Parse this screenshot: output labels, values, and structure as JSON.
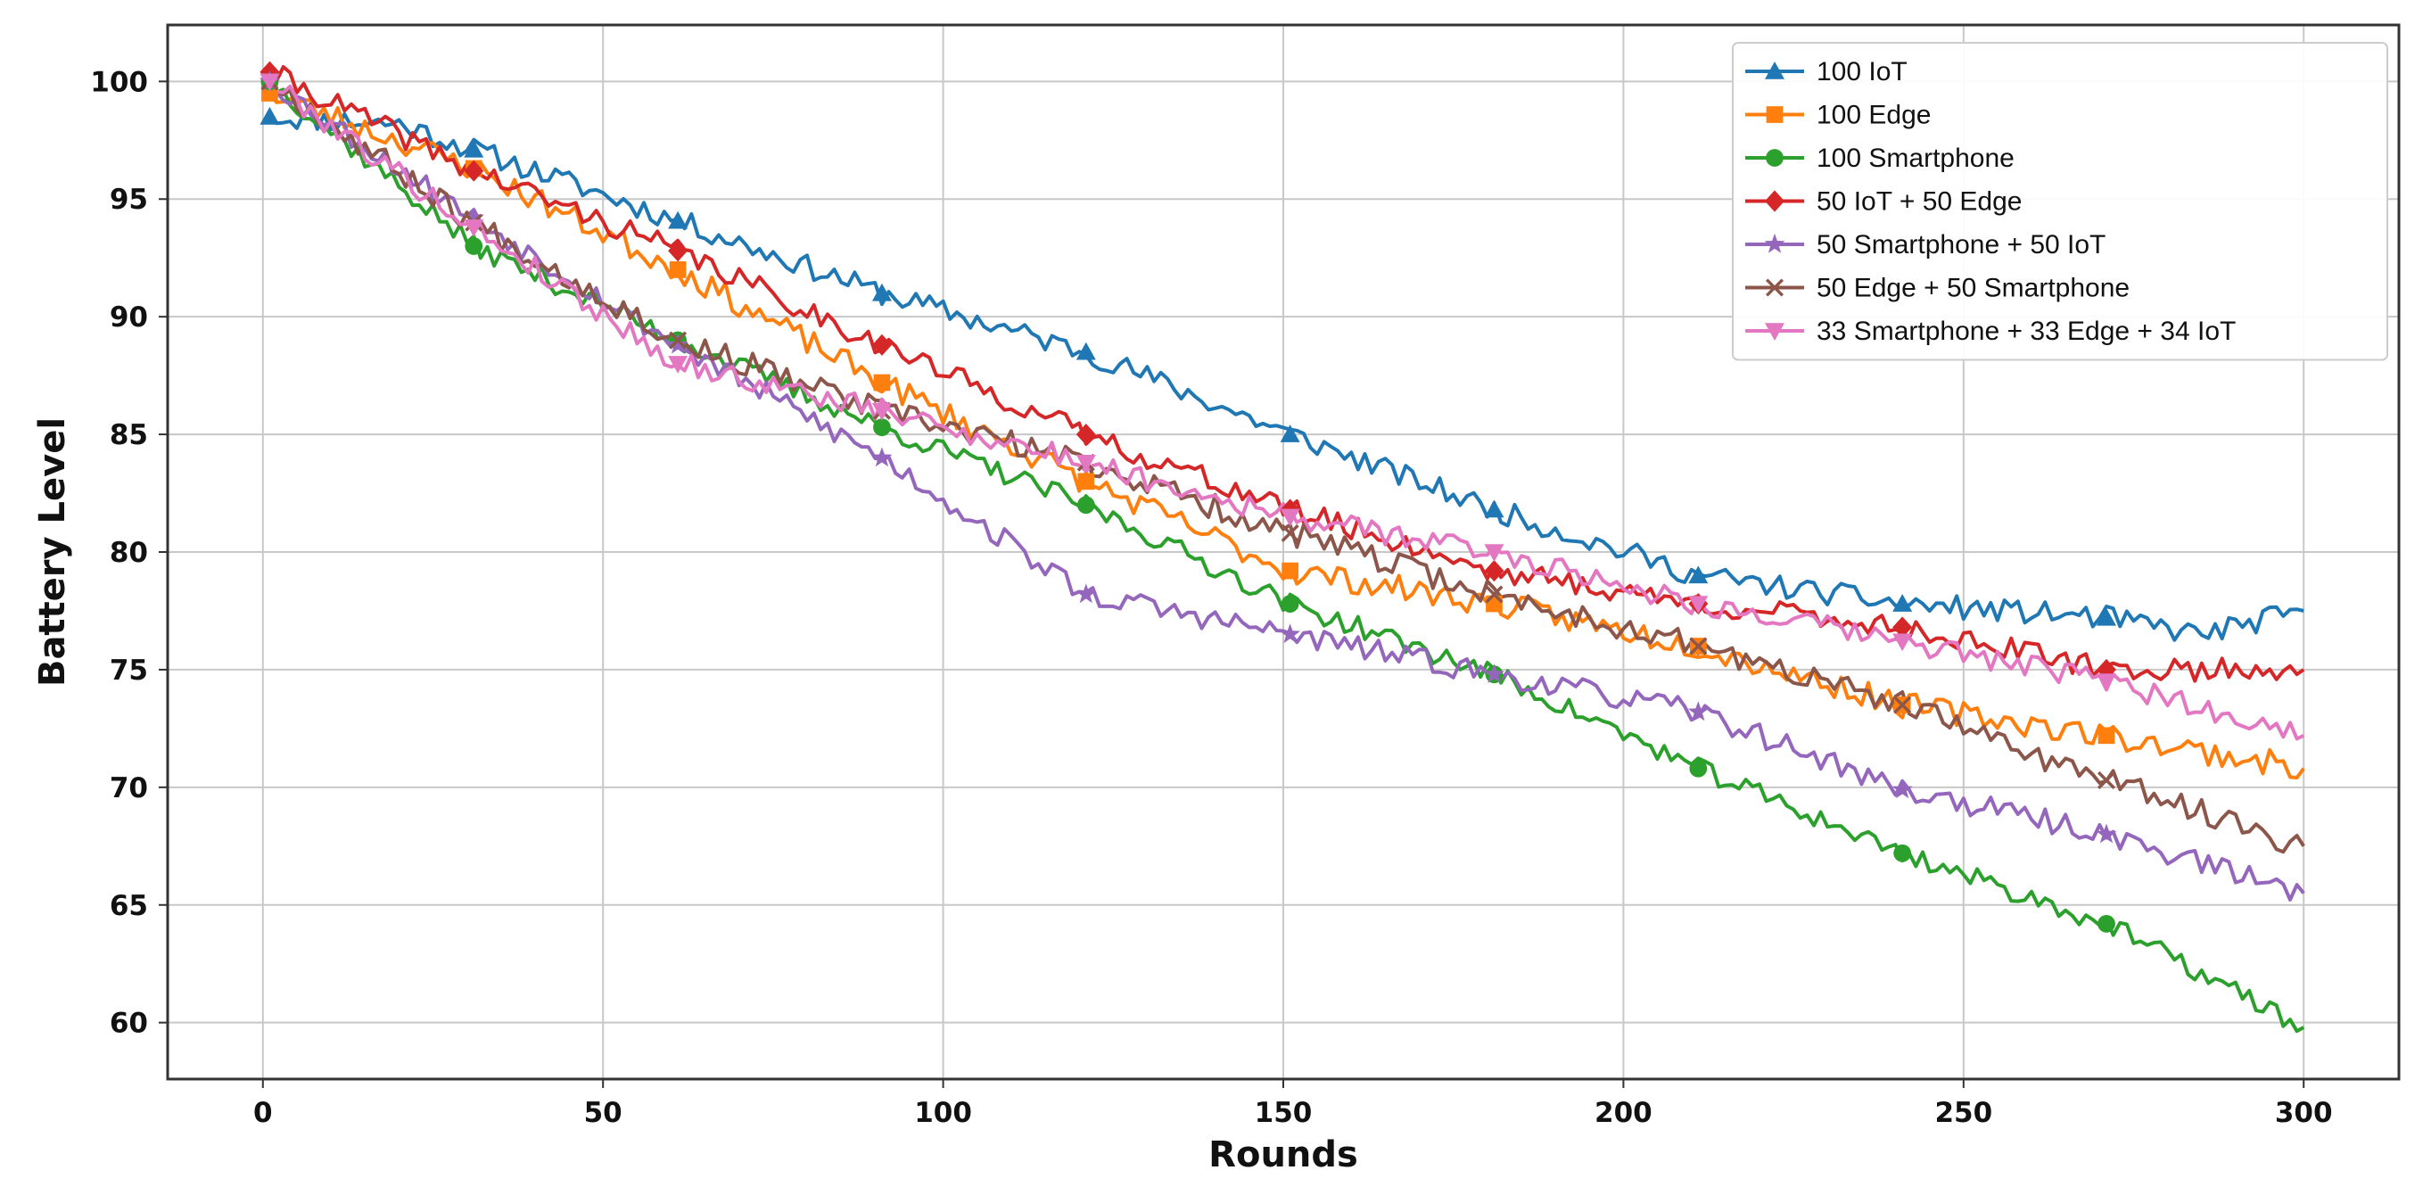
{
  "chart_data": {
    "type": "line",
    "title": "",
    "xlabel": "Rounds",
    "ylabel": "Battery Level",
    "xlim": [
      -14,
      314
    ],
    "ylim": [
      57.6,
      102.4
    ],
    "xticks": [
      0,
      50,
      100,
      150,
      200,
      250,
      300
    ],
    "yticks": [
      60,
      65,
      70,
      75,
      80,
      85,
      90,
      95,
      100
    ],
    "grid": true,
    "legend_position": "top-right",
    "marker_every": 30,
    "series": [
      {
        "name": "100 IoT",
        "color": "#1f77b4",
        "marker": "triangle-up",
        "noise": 0.5,
        "seed": 11,
        "points": [
          [
            1,
            98.5
          ],
          [
            20,
            98.2
          ],
          [
            50,
            95.2
          ],
          [
            91,
            91.0
          ],
          [
            121,
            88.5
          ],
          [
            151,
            85.0
          ],
          [
            181,
            81.8
          ],
          [
            211,
            79.0
          ],
          [
            241,
            77.8
          ],
          [
            271,
            77.2
          ],
          [
            285,
            76.5
          ],
          [
            300,
            77.5
          ]
        ]
      },
      {
        "name": "100 Edge",
        "color": "#ff7f0e",
        "marker": "square",
        "noise": 0.55,
        "seed": 23,
        "points": [
          [
            1,
            99.5
          ],
          [
            31,
            96.3
          ],
          [
            61,
            92.0
          ],
          [
            91,
            87.2
          ],
          [
            121,
            83.0
          ],
          [
            151,
            79.2
          ],
          [
            181,
            77.8
          ],
          [
            211,
            76.0
          ],
          [
            241,
            73.5
          ],
          [
            271,
            72.2
          ],
          [
            300,
            70.8
          ]
        ]
      },
      {
        "name": "100 Smartphone",
        "color": "#2ca02c",
        "marker": "circle",
        "noise": 0.45,
        "seed": 37,
        "points": [
          [
            1,
            100.0
          ],
          [
            31,
            93.0
          ],
          [
            61,
            89.0
          ],
          [
            91,
            85.3
          ],
          [
            121,
            82.0
          ],
          [
            151,
            77.8
          ],
          [
            181,
            74.8
          ],
          [
            211,
            70.8
          ],
          [
            241,
            67.2
          ],
          [
            271,
            64.2
          ],
          [
            300,
            59.8
          ]
        ]
      },
      {
        "name": "50 IoT + 50 Edge",
        "color": "#d62728",
        "marker": "diamond",
        "noise": 0.5,
        "seed": 41,
        "points": [
          [
            1,
            100.4
          ],
          [
            31,
            96.2
          ],
          [
            61,
            92.8
          ],
          [
            91,
            88.8
          ],
          [
            121,
            85.0
          ],
          [
            151,
            81.8
          ],
          [
            181,
            79.2
          ],
          [
            211,
            77.8
          ],
          [
            241,
            76.8
          ],
          [
            271,
            75.0
          ],
          [
            300,
            75.0
          ]
        ]
      },
      {
        "name": "50 Smartphone + 50 IoT",
        "color": "#9467bd",
        "marker": "star",
        "noise": 0.5,
        "seed": 53,
        "points": [
          [
            1,
            100.0
          ],
          [
            31,
            94.2
          ],
          [
            61,
            88.8
          ],
          [
            91,
            84.0
          ],
          [
            121,
            78.2
          ],
          [
            151,
            76.5
          ],
          [
            181,
            74.8
          ],
          [
            211,
            73.2
          ],
          [
            241,
            69.9
          ],
          [
            271,
            68.0
          ],
          [
            300,
            65.5
          ]
        ]
      },
      {
        "name": "50 Edge + 50 Smartphone",
        "color": "#8c564b",
        "marker": "x",
        "noise": 0.55,
        "seed": 67,
        "points": [
          [
            1,
            100.0
          ],
          [
            31,
            94.0
          ],
          [
            61,
            89.0
          ],
          [
            91,
            86.0
          ],
          [
            121,
            83.8
          ],
          [
            151,
            80.8
          ],
          [
            181,
            78.2
          ],
          [
            211,
            76.0
          ],
          [
            241,
            73.5
          ],
          [
            271,
            70.3
          ],
          [
            300,
            67.5
          ]
        ]
      },
      {
        "name": "33 Smartphone + 33 Edge + 34 IoT",
        "color": "#e377c2",
        "marker": "triangle-down",
        "noise": 0.5,
        "seed": 79,
        "points": [
          [
            1,
            100.0
          ],
          [
            31,
            93.8
          ],
          [
            61,
            88.0
          ],
          [
            91,
            86.0
          ],
          [
            121,
            83.8
          ],
          [
            151,
            81.5
          ],
          [
            181,
            80.0
          ],
          [
            211,
            77.8
          ],
          [
            241,
            76.2
          ],
          [
            271,
            74.5
          ],
          [
            300,
            72.2
          ]
        ]
      }
    ]
  }
}
